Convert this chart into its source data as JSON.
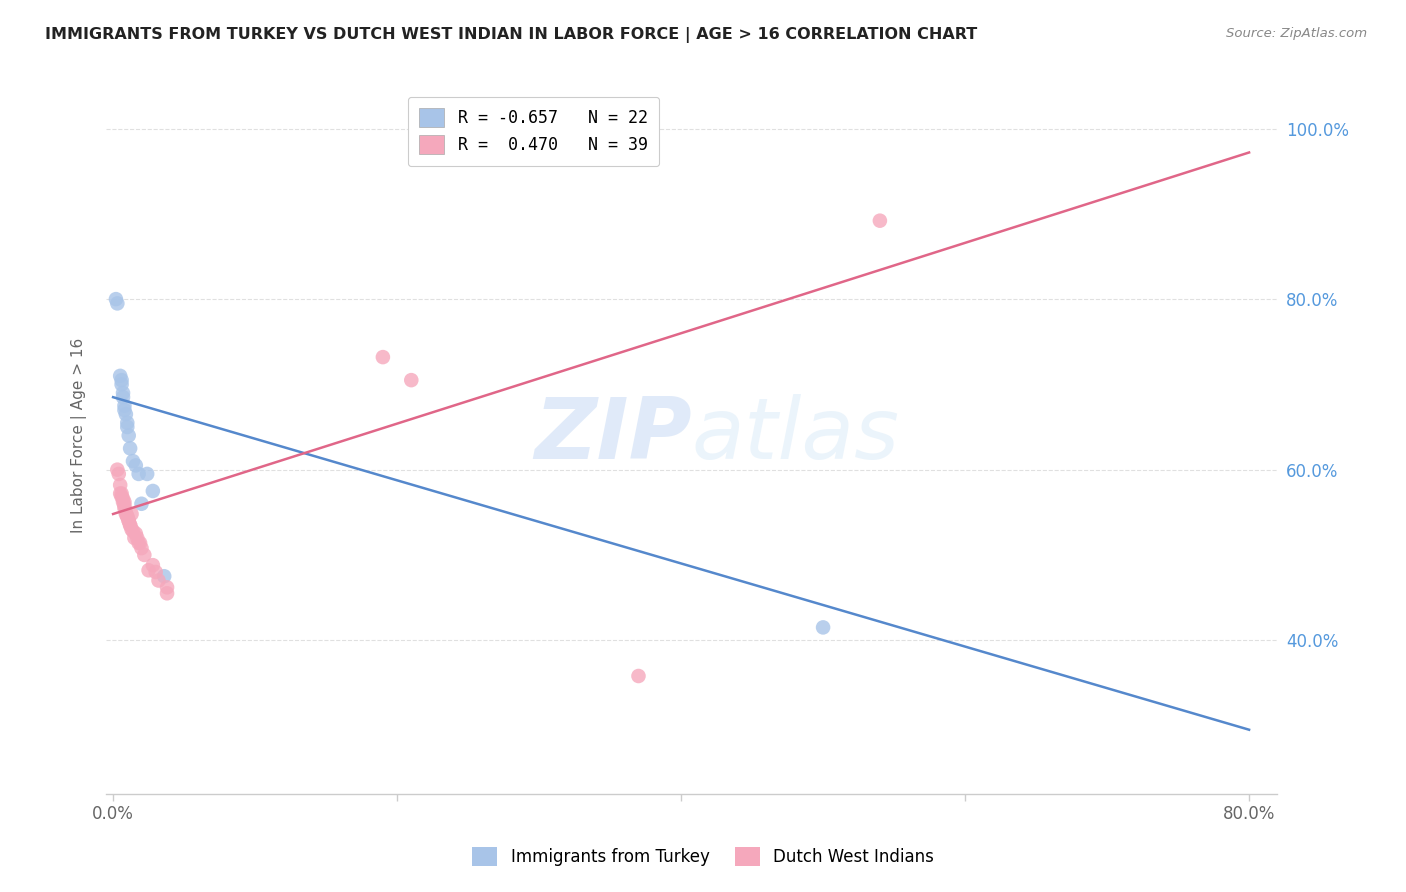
{
  "title": "IMMIGRANTS FROM TURKEY VS DUTCH WEST INDIAN IN LABOR FORCE | AGE > 16 CORRELATION CHART",
  "source": "Source: ZipAtlas.com",
  "ylabel": "In Labor Force | Age > 16",
  "xlim": [
    -0.005,
    0.82
  ],
  "ylim": [
    0.22,
    1.06
  ],
  "x_ticks": [
    0.0,
    0.2,
    0.4,
    0.6,
    0.8
  ],
  "x_tick_labels": [
    "0.0%",
    "",
    "",
    "",
    "80.0%"
  ],
  "y_ticks": [
    0.4,
    0.6,
    0.8,
    1.0
  ],
  "y_tick_labels": [
    "40.0%",
    "60.0%",
    "80.0%",
    "100.0%"
  ],
  "blue_label": "Immigrants from Turkey",
  "pink_label": "Dutch West Indians",
  "blue_R": "-0.657",
  "blue_N": "22",
  "pink_R": "0.470",
  "pink_N": "39",
  "blue_color": "#a8c4e8",
  "pink_color": "#f5a8bc",
  "blue_line_color": "#5588cc",
  "pink_line_color": "#e06688",
  "blue_trend_x": [
    0.0,
    0.8
  ],
  "blue_trend_y": [
    0.685,
    0.295
  ],
  "pink_trend_x": [
    0.0,
    0.8
  ],
  "pink_trend_y": [
    0.548,
    0.972
  ],
  "blue_points_x": [
    0.002,
    0.003,
    0.005,
    0.006,
    0.006,
    0.007,
    0.007,
    0.008,
    0.008,
    0.009,
    0.01,
    0.01,
    0.011,
    0.012,
    0.014,
    0.016,
    0.018,
    0.02,
    0.024,
    0.028,
    0.036,
    0.5
  ],
  "blue_points_y": [
    0.8,
    0.795,
    0.71,
    0.705,
    0.7,
    0.69,
    0.685,
    0.675,
    0.67,
    0.665,
    0.655,
    0.65,
    0.64,
    0.625,
    0.61,
    0.605,
    0.595,
    0.56,
    0.595,
    0.575,
    0.475,
    0.415
  ],
  "pink_points_x": [
    0.003,
    0.004,
    0.005,
    0.005,
    0.006,
    0.006,
    0.007,
    0.007,
    0.008,
    0.008,
    0.008,
    0.009,
    0.009,
    0.01,
    0.01,
    0.011,
    0.011,
    0.012,
    0.012,
    0.013,
    0.013,
    0.014,
    0.015,
    0.016,
    0.017,
    0.018,
    0.019,
    0.02,
    0.022,
    0.025,
    0.028,
    0.03,
    0.032,
    0.038,
    0.038,
    0.19,
    0.21,
    0.37,
    0.54
  ],
  "pink_points_y": [
    0.6,
    0.595,
    0.582,
    0.572,
    0.568,
    0.572,
    0.562,
    0.566,
    0.555,
    0.558,
    0.562,
    0.55,
    0.548,
    0.545,
    0.545,
    0.54,
    0.54,
    0.535,
    0.535,
    0.53,
    0.548,
    0.528,
    0.52,
    0.525,
    0.52,
    0.514,
    0.514,
    0.508,
    0.5,
    0.482,
    0.488,
    0.48,
    0.47,
    0.462,
    0.455,
    0.732,
    0.705,
    0.358,
    0.892
  ],
  "watermark_zip": "ZIP",
  "watermark_atlas": "atlas",
  "background_color": "#ffffff",
  "grid_color": "#e0e0e0"
}
